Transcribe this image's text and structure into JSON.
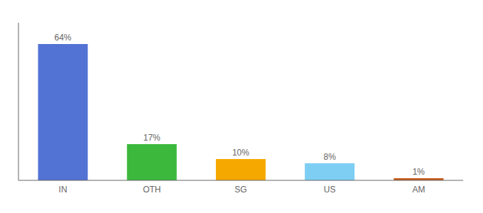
{
  "chart_data": {
    "type": "bar",
    "categories": [
      "IN",
      "OTH",
      "SG",
      "US",
      "AM"
    ],
    "values": [
      64,
      17,
      10,
      8,
      1
    ],
    "value_labels": [
      "64%",
      "17%",
      "10%",
      "8%",
      "1%"
    ],
    "data_labels": true,
    "colors": [
      "#5272d4",
      "#3cb83c",
      "#f5a800",
      "#7ecef4",
      "#c85a1a"
    ],
    "ylim": [
      0,
      74
    ],
    "tick_labels": "x",
    "grid": false
  }
}
